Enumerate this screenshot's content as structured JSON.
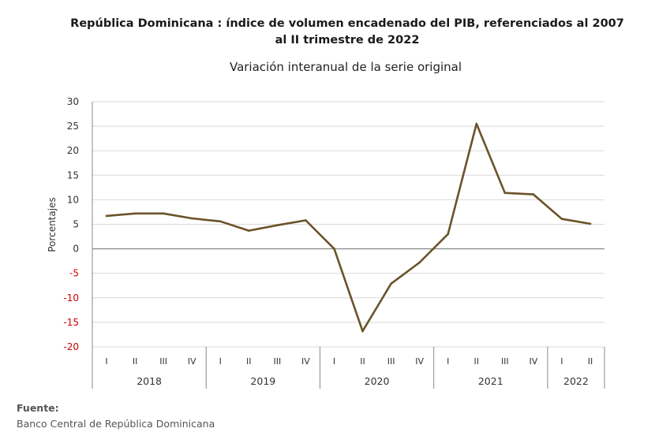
{
  "title_line1": "República Dominicana : índice de volumen encadenado del PIB, referenciados al 2007",
  "title_line2": "al II trimestre de 2022",
  "subtitle": "Variación interanual de la serie original",
  "source": {
    "heading": "Fuente:",
    "text": "Banco Central de República Dominicana"
  },
  "chart_data": {
    "type": "line",
    "ylabel": "Porcentajes",
    "ylim": [
      -20,
      30
    ],
    "yticks": [
      30,
      25,
      20,
      15,
      10,
      5,
      0,
      -5,
      -10,
      -15,
      -20
    ],
    "negative_tick_color": "#cc0000",
    "line_color": "#6b5329",
    "grid": true,
    "categories": [
      "I",
      "II",
      "III",
      "IV",
      "I",
      "II",
      "III",
      "IV",
      "I",
      "II",
      "III",
      "IV",
      "I",
      "II",
      "III",
      "IV",
      "I",
      "II"
    ],
    "years": [
      {
        "label": "2018",
        "quarters": 4
      },
      {
        "label": "2019",
        "quarters": 4
      },
      {
        "label": "2020",
        "quarters": 4
      },
      {
        "label": "2021",
        "quarters": 4
      },
      {
        "label": "2022",
        "quarters": 2
      }
    ],
    "series": [
      {
        "values": [
          6.7,
          7.2,
          7.2,
          6.2,
          5.6,
          3.7,
          4.8,
          5.8,
          0.0,
          -16.8,
          -7.1,
          -2.8,
          3.0,
          25.5,
          11.4,
          11.1,
          6.1,
          5.1
        ]
      }
    ]
  }
}
